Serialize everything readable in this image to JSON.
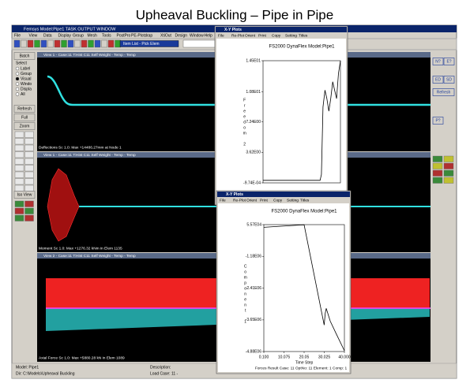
{
  "title": "Upheaval Buckling – Pipe in Pipe",
  "app": {
    "title": "Femsys Model:Pipe1 TASK OUTPUT WINDOW",
    "menu": [
      "File",
      "View",
      "Data",
      "Display",
      "Group",
      "Mesh",
      "Tools",
      "PostPro",
      "PE-Plots",
      "Irap",
      "XtiOut",
      "Design",
      "Window",
      "Help"
    ],
    "toolbar_button": "Item List - Pick Elem",
    "left_buttons": [
      "Batch",
      "Refresh",
      "Full",
      "Zoom",
      "Iso View"
    ],
    "select_label": "Select",
    "select_options": [
      "Label",
      "Group",
      "Visual",
      "Windo",
      "Displa",
      "All"
    ],
    "right_buttons": [
      "N?",
      "E?",
      "ED",
      "SD",
      "Refresh",
      "P?"
    ]
  },
  "views": [
    {
      "header": "View 1 - Case:11 T:Hist C11 Self Weight - Temp - Temp",
      "footer": "Deflections Sc 1.0: Max +14486.27mm at Node 1"
    },
    {
      "header": "View 1 - Case:11 T:Hist C11 Self Weight - Temp - Temp",
      "footer": "Moment Sc 1.0: Max +1276.32 kNm in Elem 1135"
    },
    {
      "header": "View 2 - Case:11 T:Hist C11 Self Weight - Temp - Temp",
      "footer": "Axial Force Sc 1.0: Max +5880.28 kN in Elem 1089"
    }
  ],
  "status": {
    "model": "Model:  Pipe1",
    "dir": "Dir:  C:\\Models\\Upheaval Buckling",
    "description": "Description:",
    "load_case": "Load Case: 11 -"
  },
  "plots": [
    {
      "window_title": "X-Y Plots",
      "menu": [
        "File",
        "Re-Plot",
        "Orient",
        "Print",
        "Copy",
        "Setting",
        "Titles"
      ],
      "chart_data": {
        "type": "line",
        "title": "FS2000 DynaFlex Model:Pipe1",
        "y_label": "Freedom 2",
        "x": [
          0.1,
          29.5,
          30.2,
          31,
          32,
          33,
          34,
          35,
          36,
          37,
          38,
          39,
          40
        ],
        "values": [
          0.3,
          0.3,
          1,
          9,
          11,
          10,
          8.5,
          10,
          12,
          11,
          10,
          13,
          14.5
        ],
        "color": "#000000",
        "xlim": [
          0.1,
          40
        ],
        "ylim": [
          -0.000974,
          14.5
        ],
        "yticks": [
          {
            "value": 14.5,
            "label": "1.45E01"
          },
          {
            "value": 10.8,
            "label": "1.08E01"
          },
          {
            "value": 7.24,
            "label": "7.24E00"
          },
          {
            "value": 3.62,
            "label": "3.62E00"
          },
          {
            "value": -0.000974,
            "label": "-9.74E-04"
          }
        ]
      }
    },
    {
      "window_title": "X-Y Plots",
      "menu": [
        "File",
        "Re-Plot",
        "Orient",
        "Print",
        "Copy",
        "Setting",
        "Titles"
      ],
      "footer": "Forces Result Case: 11  OptNo: 11  Element: 1  Comp: 1",
      "chart_data": {
        "type": "line",
        "title": "FS2000 DynaFlex Model:Pipe1",
        "y_label": "Component 1",
        "x_label": "Time Step",
        "x": [
          0.1,
          20.05,
          30.0,
          30.5,
          31,
          33,
          36,
          40
        ],
        "values": [
          -50000,
          50000,
          -3850000,
          -3400000,
          -3200000,
          -3700000,
          -4200000,
          -4850000
        ],
        "color": "#000000",
        "xlim": [
          0.1,
          40
        ],
        "ylim": [
          -4880000,
          55700
        ],
        "xticks": [
          {
            "value": 0.1,
            "label": "0.100"
          },
          10.075,
          20.05,
          30.025,
          {
            "value": 40,
            "label": "40.000"
          }
        ],
        "yticks": [
          {
            "value": 55700,
            "label": "5.57E04"
          },
          {
            "value": -1180000,
            "label": "-1.18E06"
          },
          {
            "value": -2410000,
            "label": "-2.41E06"
          },
          {
            "value": -3650000,
            "label": "-3.65E06"
          },
          {
            "value": -4880000,
            "label": "-4.88E06"
          }
        ]
      }
    }
  ]
}
